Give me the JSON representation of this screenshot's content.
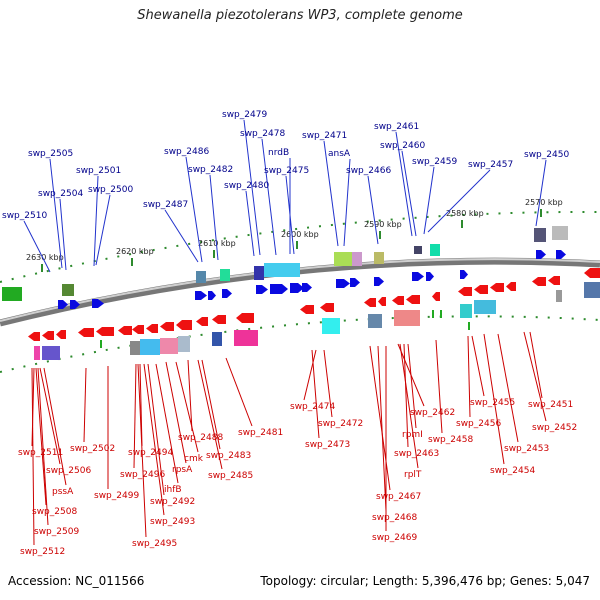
{
  "title": "Shewanella piezotolerans WP3, complete genome",
  "accession": "Accession: NC_011566",
  "summary": "Topology: circular; Length: 5,396,476 bp; Genes: 5,047",
  "scale_ticks": [
    "2630 kbp",
    "2620 kbp",
    "2610 kbp",
    "2600 kbp",
    "2590 kbp",
    "2580 kbp",
    "2570 kbp"
  ],
  "top_labels": [
    "swp_2505",
    "swp_2504",
    "swp_2501",
    "swp_2500",
    "swp_2510",
    "swp_2487",
    "swp_2486",
    "swp_2482",
    "swp_2480",
    "swp_2479",
    "swp_2478",
    "nrdB",
    "swp_2475",
    "swp_2471",
    "ansA",
    "swp_2466",
    "swp_2461",
    "swp_2460",
    "swp_2459",
    "swp_2457",
    "swp_2450"
  ],
  "bottom_labels": [
    "swp_2511",
    "swp_2506",
    "pssA",
    "swp_2508",
    "swp_2509",
    "swp_2512",
    "swp_2502",
    "swp_2499",
    "swp_2494",
    "swp_2496",
    "ihfB",
    "swp_2492",
    "swp_2493",
    "swp_2495",
    "cmk",
    "rpsA",
    "swp_2488",
    "swp_2483",
    "swp_2485",
    "swp_2481",
    "swp_2474",
    "swp_2472",
    "swp_2473",
    "swp_2462",
    "rpmI",
    "swp_2463",
    "rplT",
    "swp_2467",
    "swp_2468",
    "swp_2469",
    "swp_2458",
    "swp_2455",
    "swp_2456",
    "swp_2453",
    "swp_2454",
    "swp_2451",
    "swp_2452"
  ],
  "colors": {
    "forward_gene": "#0a0ae0",
    "reverse_gene": "#ee1111",
    "forward_label": "#00008b",
    "reverse_label": "#cc0000",
    "backbone": "#888888",
    "tick": "#2e8b2e"
  }
}
